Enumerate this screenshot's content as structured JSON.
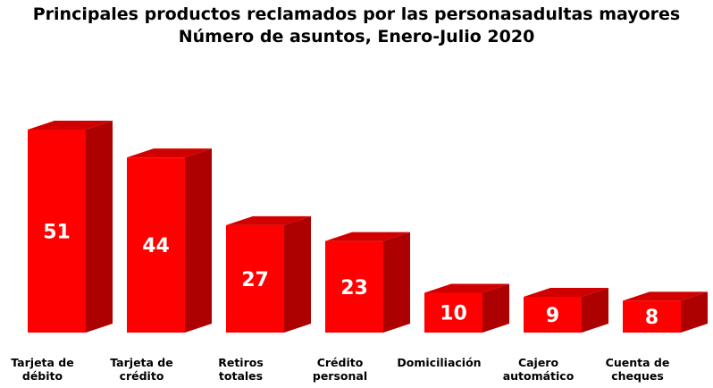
{
  "chart_data": {
    "type": "bar",
    "title": "Principales productos reclamados por las personasadultas mayores",
    "subtitle": "Número de asuntos, Enero-Julio 2020",
    "categories": [
      "Tarjeta de débito",
      "Tarjeta de crédito",
      "Retiros totales",
      "Crédito personal",
      "Domiciliación",
      "Cajero automático",
      "Cuenta de cheques"
    ],
    "values": [
      51,
      44,
      27,
      23,
      10,
      9,
      8
    ],
    "color": "#ff0000"
  }
}
